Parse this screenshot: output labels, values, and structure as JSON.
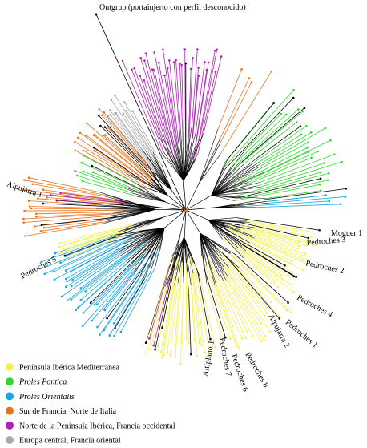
{
  "outgroup": "Outgrup (portainjerto con perfil desconocido)",
  "labels": [
    "Alpujarra 1",
    "Moguer 1",
    "Pedroches 3",
    "Pedroches 2",
    "Pedroches 4",
    "Alpujarra 2",
    "Pedroches 1",
    "Pedroches 5",
    "Altiplano 1",
    "Pedroches 7",
    "Pedroches 6",
    "Pedroches 8"
  ],
  "legend": [
    {
      "label": "Península Ibérica Mediterránea",
      "color": "#f5f050"
    },
    {
      "label": "Proles Pontica",
      "color": "#2fd42f"
    },
    {
      "label": "Proles Orientalis",
      "color": "#1aa6dc"
    },
    {
      "label": "Sur de Francia, Norte de Italia",
      "color": "#e8731e"
    },
    {
      "label": "Norte de la Península Ibérica, Francia occidental",
      "color": "#b01fb8"
    },
    {
      "label": "Europa central, Francia oriental",
      "color": "#a9a9a9"
    }
  ]
}
